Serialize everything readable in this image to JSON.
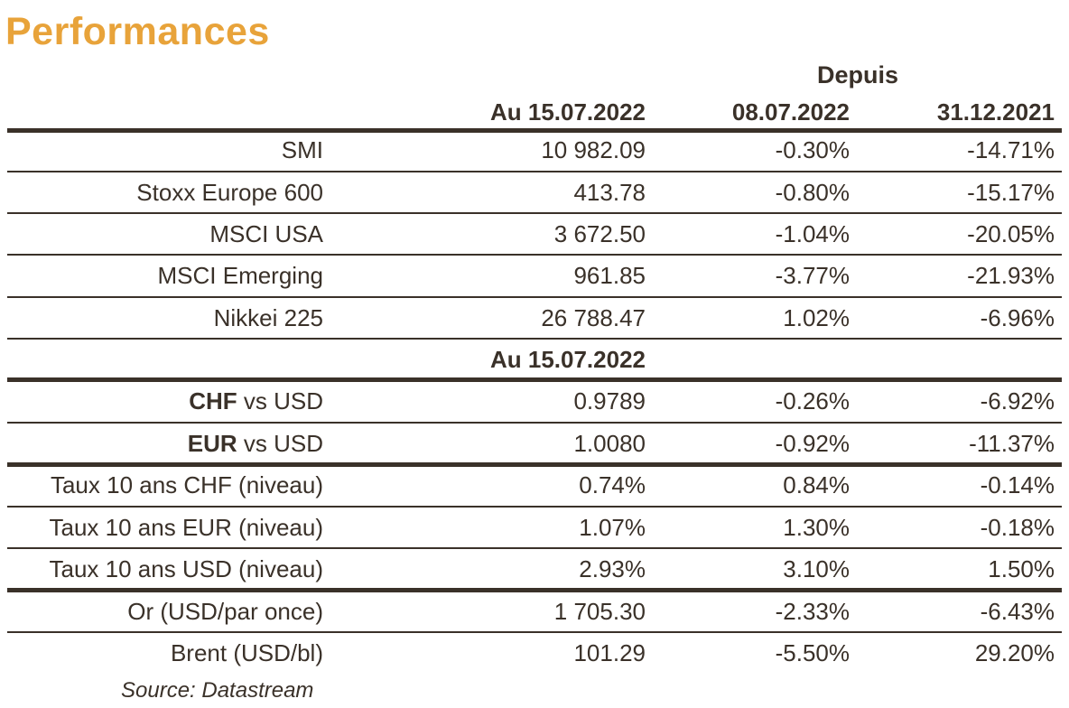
{
  "title": "Performances",
  "depuis_label": "Depuis",
  "header": {
    "col1": "Au 15.07.2022",
    "col2": "08.07.2022",
    "col3": "31.12.2021"
  },
  "rows_indices": [
    {
      "name": "SMI",
      "value": "10 982.09",
      "week": "-0.30%",
      "ytd": "-14.71%"
    },
    {
      "name": "Stoxx Europe 600",
      "value": "413.78",
      "week": "-0.80%",
      "ytd": "-15.17%"
    },
    {
      "name": "MSCI USA",
      "value": "3 672.50",
      "week": "-1.04%",
      "ytd": "-20.05%"
    },
    {
      "name": "MSCI Emerging",
      "value": "961.85",
      "week": "-3.77%",
      "ytd": "-21.93%"
    },
    {
      "name": "Nikkei 225",
      "value": "26 788.47",
      "week": "1.02%",
      "ytd": "-6.96%"
    }
  ],
  "sub_header": "Au 15.07.2022",
  "rows_fx": [
    {
      "name_bold": "CHF",
      "name_rest": " vs USD",
      "value": "0.9789",
      "week": "-0.26%",
      "ytd": "-6.92%"
    },
    {
      "name_bold": "EUR",
      "name_rest": " vs USD",
      "value": "1.0080",
      "week": "-0.92%",
      "ytd": "-11.37%"
    }
  ],
  "rows_rates": [
    {
      "name": "Taux 10 ans CHF (niveau)",
      "value": "0.74%",
      "week": "0.84%",
      "ytd": "-0.14%"
    },
    {
      "name": "Taux 10 ans EUR (niveau)",
      "value": "1.07%",
      "week": "1.30%",
      "ytd": "-0.18%"
    },
    {
      "name": "Taux 10 ans USD (niveau)",
      "value": "2.93%",
      "week": "3.10%",
      "ytd": "1.50%"
    }
  ],
  "rows_commodities": [
    {
      "name": "Or (USD/par once)",
      "value": "1 705.30",
      "week": "-2.33%",
      "ytd": "-6.43%"
    },
    {
      "name": "Brent (USD/bl)",
      "value": "101.29",
      "week": "-5.50%",
      "ytd": "29.20%"
    }
  ],
  "source": "Source: Datastream"
}
